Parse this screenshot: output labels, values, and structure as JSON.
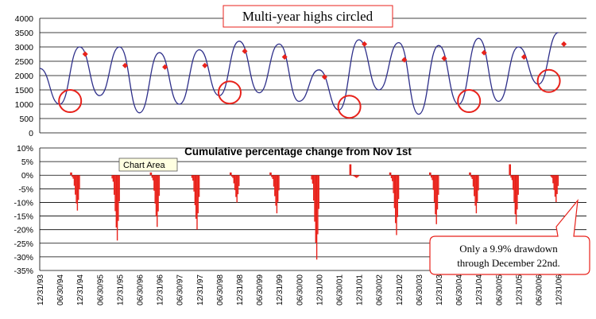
{
  "chart_data": [
    {
      "type": "line",
      "title": "Multi-year highs circled",
      "ylim": [
        0,
        4000
      ],
      "yticks": [
        0,
        500,
        1000,
        1500,
        2000,
        2500,
        3000,
        3500,
        4000
      ],
      "grid": true,
      "series": [
        {
          "x": [
            "12/31/93",
            "06/30/94",
            "12/31/94",
            "06/30/95",
            "12/31/95",
            "06/30/96",
            "12/31/96",
            "06/30/97",
            "12/31/97",
            "06/30/98",
            "12/31/98",
            "06/30/99",
            "12/31/99",
            "06/30/00",
            "12/31/00",
            "06/30/01",
            "12/31/01",
            "06/30/02",
            "12/31/02",
            "06/30/03",
            "12/31/03",
            "06/30/04",
            "12/31/04",
            "06/30/05",
            "12/31/05",
            "06/30/06",
            "12/31/06"
          ],
          "y": [
            2250,
            1000,
            3000,
            1300,
            3000,
            700,
            2800,
            1000,
            2900,
            1300,
            3200,
            1400,
            3100,
            1100,
            2200,
            800,
            3250,
            1500,
            3150,
            650,
            3050,
            1000,
            3300,
            1100,
            3000,
            1700,
            3500
          ]
        }
      ],
      "markers": [
        {
          "x": "12/31/94",
          "y": 2750
        },
        {
          "x": "12/31/95",
          "y": 2350
        },
        {
          "x": "12/31/96",
          "y": 2300
        },
        {
          "x": "12/31/97",
          "y": 2350
        },
        {
          "x": "12/31/98",
          "y": 2850
        },
        {
          "x": "12/31/99",
          "y": 2650
        },
        {
          "x": "12/31/00",
          "y": 1950
        },
        {
          "x": "12/31/01",
          "y": 3100
        },
        {
          "x": "12/31/02",
          "y": 2550
        },
        {
          "x": "12/31/03",
          "y": 2600
        },
        {
          "x": "12/31/04",
          "y": 2800
        },
        {
          "x": "12/31/05",
          "y": 2650
        },
        {
          "x": "12/31/06",
          "y": 3100
        }
      ],
      "highs_circled": [
        "12/31/94",
        "12/31/98",
        "12/31/01",
        "12/31/04",
        "12/31/06"
      ]
    },
    {
      "type": "bar",
      "title": "Cumulative percentage change from Nov 1st",
      "ylim": [
        -35,
        10
      ],
      "yticks": [
        "10%",
        "5%",
        "0%",
        "-5%",
        "-10%",
        "-15%",
        "-20%",
        "-25%",
        "-30%",
        "-35%"
      ],
      "grid": true,
      "categories": [
        "12/31/93",
        "06/30/94",
        "12/31/94",
        "06/30/95",
        "12/31/95",
        "06/30/96",
        "12/31/96",
        "06/30/97",
        "12/31/97",
        "06/30/98",
        "12/31/98",
        "06/30/99",
        "12/31/99",
        "06/30/00",
        "12/31/00",
        "06/30/01",
        "12/31/01",
        "06/30/02",
        "12/31/02",
        "06/30/03",
        "12/31/03",
        "06/30/04",
        "12/31/04",
        "06/30/05",
        "12/31/05",
        "06/30/06",
        "12/31/06"
      ],
      "season_drawdowns": [
        {
          "year": "1994",
          "max_gain": 1,
          "min_drawdown": -13
        },
        {
          "year": "1995",
          "max_gain": 0,
          "min_drawdown": -24
        },
        {
          "year": "1996",
          "max_gain": 1,
          "min_drawdown": -19
        },
        {
          "year": "1997",
          "max_gain": 0,
          "min_drawdown": -20
        },
        {
          "year": "1998",
          "max_gain": 1,
          "min_drawdown": -10
        },
        {
          "year": "1999",
          "max_gain": 1,
          "min_drawdown": -14
        },
        {
          "year": "2000",
          "max_gain": 0,
          "min_drawdown": -31
        },
        {
          "year": "2001",
          "max_gain": 4,
          "min_drawdown": -1
        },
        {
          "year": "2002",
          "max_gain": 1,
          "min_drawdown": -22
        },
        {
          "year": "2003",
          "max_gain": 1,
          "min_drawdown": -18
        },
        {
          "year": "2004",
          "max_gain": 1,
          "min_drawdown": -14
        },
        {
          "year": "2005",
          "max_gain": 4,
          "min_drawdown": -18
        },
        {
          "year": "2006",
          "max_gain": 0,
          "min_drawdown": -9.9
        }
      ],
      "tooltip": "Chart Area",
      "callout": [
        "Only a 9.9% drawdown",
        "through December 22nd."
      ]
    }
  ],
  "colors": {
    "line": "#2e2f8a",
    "marker": "#e8221b",
    "circle": "#e8221b",
    "bars": "#e8221b",
    "grid": "#000000"
  }
}
